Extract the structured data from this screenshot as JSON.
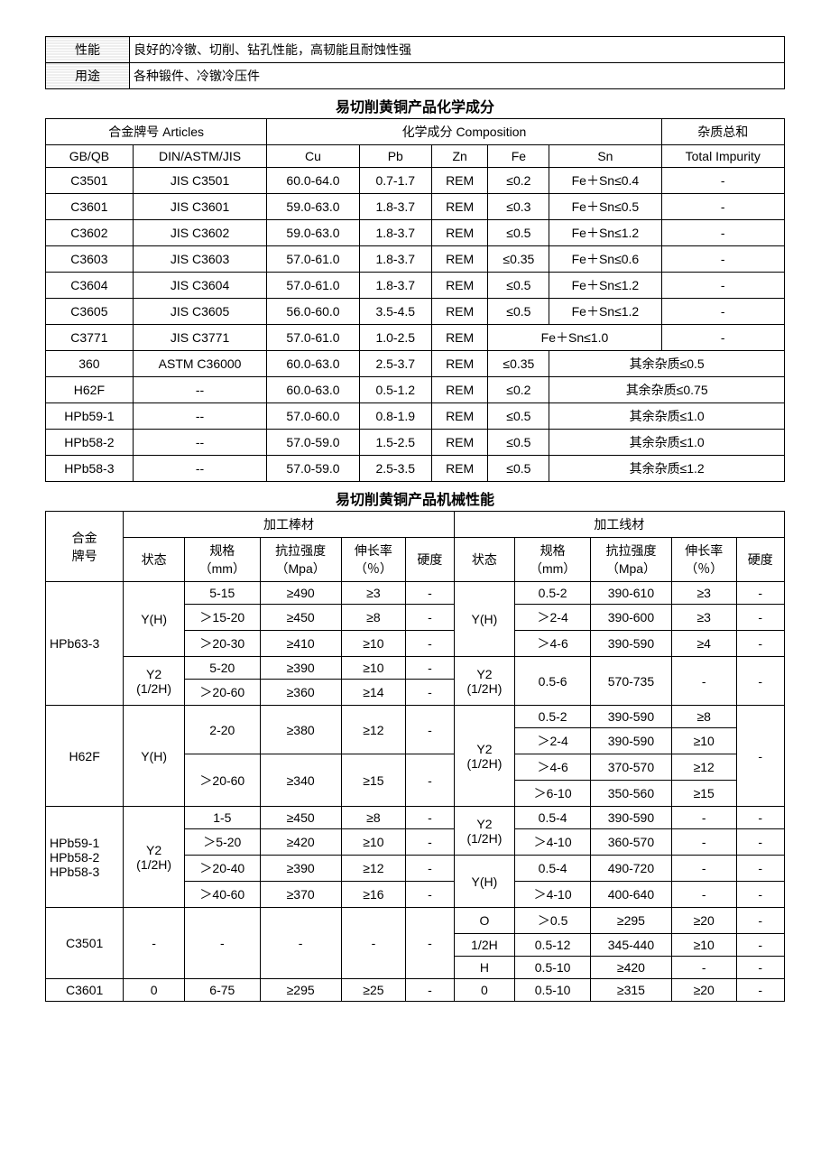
{
  "info_rows": [
    {
      "label": "性能",
      "value": "良好的冷镦、切削、钻孔性能，高韧能且耐蚀性强"
    },
    {
      "label": "用途",
      "value": "各种锻件、冷镦冷压件"
    }
  ],
  "comp_title": "易切削黄铜产品化学成分",
  "comp_headers": {
    "articles": "合金牌号 Articles",
    "composition": "化学成分 Composition",
    "impurity_top": "杂质总和",
    "gbqb": "GB/QB",
    "din": "DIN/ASTM/JIS",
    "cu": "Cu",
    "pb": "Pb",
    "zn": "Zn",
    "fe": "Fe",
    "sn": "Sn",
    "impurity_bot": "Total Impurity"
  },
  "comp_rows_simple": [
    {
      "gb": "C3501",
      "din": "JIS C3501",
      "cu": "60.0-64.0",
      "pb": "0.7-1.7",
      "zn": "REM",
      "fe": "≤0.2",
      "sn": "Fe＋Sn≤0.4",
      "imp": "-"
    },
    {
      "gb": "C3601",
      "din": "JIS C3601",
      "cu": "59.0-63.0",
      "pb": "1.8-3.7",
      "zn": "REM",
      "fe": "≤0.3",
      "sn": "Fe＋Sn≤0.5",
      "imp": "-"
    },
    {
      "gb": "C3602",
      "din": "JIS C3602",
      "cu": "59.0-63.0",
      "pb": "1.8-3.7",
      "zn": "REM",
      "fe": "≤0.5",
      "sn": "Fe＋Sn≤1.2",
      "imp": "-"
    },
    {
      "gb": "C3603",
      "din": "JIS C3603",
      "cu": "57.0-61.0",
      "pb": "1.8-3.7",
      "zn": "REM",
      "fe": "≤0.35",
      "sn": "Fe＋Sn≤0.6",
      "imp": "-"
    },
    {
      "gb": "C3604",
      "din": "JIS C3604",
      "cu": "57.0-61.0",
      "pb": "1.8-3.7",
      "zn": "REM",
      "fe": "≤0.5",
      "sn": "Fe＋Sn≤1.2",
      "imp": "-"
    },
    {
      "gb": "C3605",
      "din": "JIS C3605",
      "cu": "56.0-60.0",
      "pb": "3.5-4.5",
      "zn": "REM",
      "fe": "≤0.5",
      "sn": "Fe＋Sn≤1.2",
      "imp": "-"
    }
  ],
  "comp_row_c3771": {
    "gb": "C3771",
    "din": "JIS C3771",
    "cu": "57.0-61.0",
    "pb": "1.0-2.5",
    "zn": "REM",
    "fesn": "Fe＋Sn≤1.0",
    "imp": "-"
  },
  "comp_rows_merge": [
    {
      "gb": "360",
      "din": "ASTM C36000",
      "cu": "60.0-63.0",
      "pb": "2.5-3.7",
      "zn": "REM",
      "fe": "≤0.35",
      "rest": "其余杂质≤0.5"
    },
    {
      "gb": "H62F",
      "din": "--",
      "cu": "60.0-63.0",
      "pb": "0.5-1.2",
      "zn": "REM",
      "fe": "≤0.2",
      "rest": "其余杂质≤0.75"
    },
    {
      "gb": "HPb59-1",
      "din": "--",
      "cu": "57.0-60.0",
      "pb": "0.8-1.9",
      "zn": "REM",
      "fe": "≤0.5",
      "rest": "其余杂质≤1.0"
    },
    {
      "gb": "HPb58-2",
      "din": "--",
      "cu": "57.0-59.0",
      "pb": "1.5-2.5",
      "zn": "REM",
      "fe": "≤0.5",
      "rest": "其余杂质≤1.0"
    },
    {
      "gb": "HPb58-3",
      "din": "--",
      "cu": "57.0-59.0",
      "pb": "2.5-3.5",
      "zn": "REM",
      "fe": "≤0.5",
      "rest": "其余杂质≤1.2"
    }
  ],
  "mech_title": "易切削黄铜产品机械性能",
  "mech_headers": {
    "alloy": "合金\n牌号",
    "bar": "加工棒材",
    "wire": "加工线材",
    "state": "状态",
    "spec": "规格\n（mm）",
    "tensile": "抗拉强度\n（Mpa）",
    "elong": "伸长率\n（％）",
    "hard": "硬度",
    "spec_w": "规格\n（mm）",
    "tensile_w": "抗拉强度\n（Mpa）",
    "elong_w": "伸长率\n（％）",
    "hard_w": "硬度"
  },
  "g1": {
    "alloy": "HPb63-3",
    "bar_state1": "Y(H)",
    "b1": [
      "5-15",
      "≥490",
      "≥3",
      "-"
    ],
    "b2": [
      "＞15-20",
      "≥450",
      "≥8",
      "-"
    ],
    "b3": [
      "＞20-30",
      "≥410",
      "≥10",
      "-"
    ],
    "wire_state1": "Y(H)",
    "w1": [
      "0.5-2",
      "390-610",
      "≥3",
      "-"
    ],
    "w2": [
      "＞2-4",
      "390-600",
      "≥3",
      "-"
    ],
    "w3": [
      "＞4-6",
      "390-590",
      "≥4",
      "-"
    ],
    "bar_state2": "Y2\n(1/2H)",
    "b4": [
      "5-20",
      "≥390",
      "≥10",
      "-"
    ],
    "b5": [
      "＞20-60",
      "≥360",
      "≥14",
      "-"
    ],
    "wire_state2": "Y2\n(1/2H)",
    "w45_spec": "0.5-6",
    "w45_tensile": "570-735",
    "w45_elong": "-",
    "w45_hard": "-"
  },
  "g2": {
    "alloy": "H62F",
    "bar_state": "Y(H)",
    "b1": [
      "2-20",
      "≥380",
      "≥12",
      "-"
    ],
    "b2": [
      "＞20-60",
      "≥340",
      "≥15",
      "-"
    ],
    "wire_state": "Y2\n(1/2H)",
    "w1": [
      "0.5-2",
      "390-590",
      "≥8"
    ],
    "w2": [
      "＞2-4",
      "390-590",
      "≥10"
    ],
    "w3": [
      "＞4-6",
      "370-570",
      "≥12"
    ],
    "w4": [
      "＞6-10",
      "350-560",
      "≥15"
    ],
    "w_hard": "-"
  },
  "g3": {
    "alloy": "HPb59-1\nHPb58-2\nHPb58-3",
    "bar_state": "Y2\n(1/2H)",
    "b1": [
      "1-5",
      "≥450",
      "≥8",
      "-"
    ],
    "b2": [
      "＞5-20",
      "≥420",
      "≥10",
      "-"
    ],
    "b3": [
      "＞20-40",
      "≥390",
      "≥12",
      "-"
    ],
    "b4": [
      "＞40-60",
      "≥370",
      "≥16",
      "-"
    ],
    "wire_state1": "Y2\n(1/2H)",
    "w1": [
      "0.5-4",
      "390-590",
      "-",
      "-"
    ],
    "w2": [
      "＞4-10",
      "360-570",
      "-",
      "-"
    ],
    "wire_state2": "Y(H)",
    "w3": [
      "0.5-4",
      "490-720",
      "-",
      "-"
    ],
    "w4": [
      "＞4-10",
      "400-640",
      "-",
      "-"
    ]
  },
  "g4": {
    "alloy": "C3501",
    "bar_state": "-",
    "bar_spec": "-",
    "bar_tens": "-",
    "bar_elon": "-",
    "bar_hard": "-",
    "r1": [
      "O",
      "＞0.5",
      "≥295",
      "≥20",
      "-"
    ],
    "r2": [
      "1/2H",
      "0.5-12",
      "345-440",
      "≥10",
      "-"
    ],
    "r3": [
      "H",
      "0.5-10",
      "≥420",
      "-",
      "-"
    ]
  },
  "g5": {
    "alloy": "C3601",
    "b": [
      "0",
      "6-75",
      "≥295",
      "≥25",
      "-"
    ],
    "w": [
      "0",
      "0.5-10",
      "≥315",
      "≥20",
      "-"
    ]
  }
}
